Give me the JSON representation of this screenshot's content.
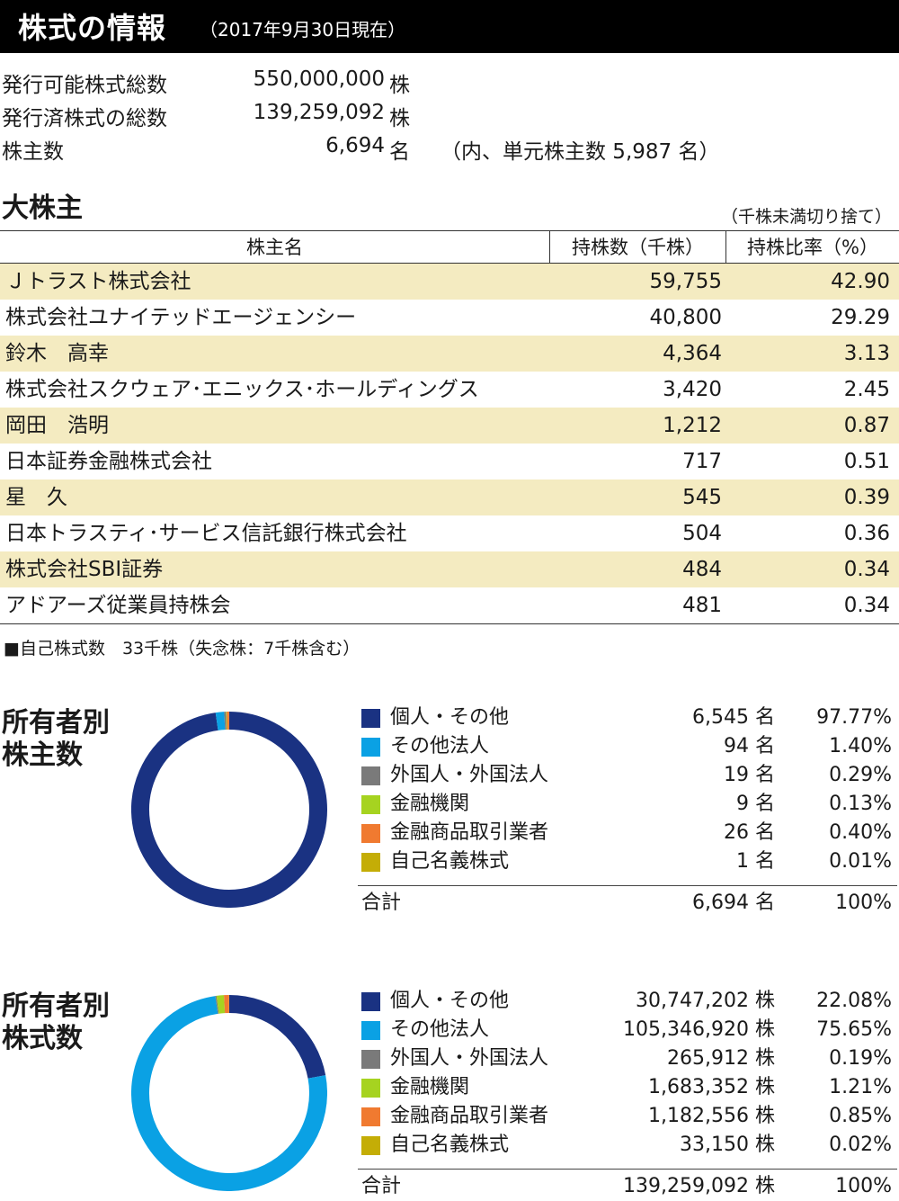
{
  "header": {
    "title": "株式の情報",
    "subtitle": "（2017年9月30日現在）"
  },
  "stock_info": [
    {
      "label": "発行可能株式総数",
      "value": "550,000,000",
      "unit": "株",
      "note": ""
    },
    {
      "label": "発行済株式の総数",
      "value": "139,259,092",
      "unit": "株",
      "note": ""
    },
    {
      "label": "株主数",
      "value": "6,694",
      "unit": "名",
      "note": "（内、単元株主数 5,987 名）"
    }
  ],
  "major_shareholders": {
    "title": "大株主",
    "note": "（千株未満切り捨て）",
    "headers": [
      "株主名",
      "持株数（千株）",
      "持株比率（%）"
    ],
    "rows": [
      {
        "name": "Ｊトラスト株式会社",
        "shares": "59,755",
        "ratio": "42.90"
      },
      {
        "name": "株式会社ユナイテッドエージェンシー",
        "shares": "40,800",
        "ratio": "29.29"
      },
      {
        "name": "鈴木　高幸",
        "shares": "4,364",
        "ratio": "3.13"
      },
      {
        "name": "株式会社スクウェア･エニックス･ホールディングス",
        "shares": "3,420",
        "ratio": "2.45"
      },
      {
        "name": "岡田　浩明",
        "shares": "1,212",
        "ratio": "0.87"
      },
      {
        "name": "日本証券金融株式会社",
        "shares": "717",
        "ratio": "0.51"
      },
      {
        "name": "星　久",
        "shares": "545",
        "ratio": "0.39"
      },
      {
        "name": "日本トラスティ･サービス信託銀行株式会社",
        "shares": "504",
        "ratio": "0.36"
      },
      {
        "name": "株式会社SBI証券",
        "shares": "484",
        "ratio": "0.34"
      },
      {
        "name": "アドアーズ従業員持株会",
        "shares": "481",
        "ratio": "0.34"
      }
    ],
    "footnote": "■自己株式数　33千株（失念株：7千株含む）"
  },
  "colors": {
    "individual": "#1a3282",
    "other_corp": "#0aa1e4",
    "foreign": "#7a7a7a",
    "financial": "#a6d320",
    "securities": "#f07a30",
    "treasury": "#c4ad06",
    "row_highlight": "#f4ebc1"
  },
  "chart_data": [
    {
      "type": "pie",
      "title_line1": "所有者別",
      "title_line2": "株主数",
      "unit": "名",
      "categories": [
        "個人・その他",
        "その他法人",
        "外国人・外国法人",
        "金融機関",
        "金融商品取引業者",
        "自己名義株式"
      ],
      "counts": [
        "6,545",
        "94",
        "19",
        "9",
        "26",
        "1"
      ],
      "percent_labels": [
        "97.77%",
        "1.40%",
        "0.29%",
        "0.13%",
        "0.40%",
        "0.01%"
      ],
      "values": [
        97.77,
        1.4,
        0.29,
        0.13,
        0.4,
        0.01
      ],
      "total_label": "合計",
      "total_count": "6,694",
      "total_percent": "100%"
    },
    {
      "type": "pie",
      "title_line1": "所有者別",
      "title_line2": "株式数",
      "unit": "株",
      "categories": [
        "個人・その他",
        "その他法人",
        "外国人・外国法人",
        "金融機関",
        "金融商品取引業者",
        "自己名義株式"
      ],
      "counts": [
        "30,747,202",
        "105,346,920",
        "265,912",
        "1,683,352",
        "1,182,556",
        "33,150"
      ],
      "percent_labels": [
        "22.08%",
        "75.65%",
        "0.19%",
        "1.21%",
        "0.85%",
        "0.02%"
      ],
      "values": [
        22.08,
        75.65,
        0.19,
        1.21,
        0.85,
        0.02
      ],
      "total_label": "合計",
      "total_count": "139,259,092",
      "total_percent": "100%"
    }
  ]
}
